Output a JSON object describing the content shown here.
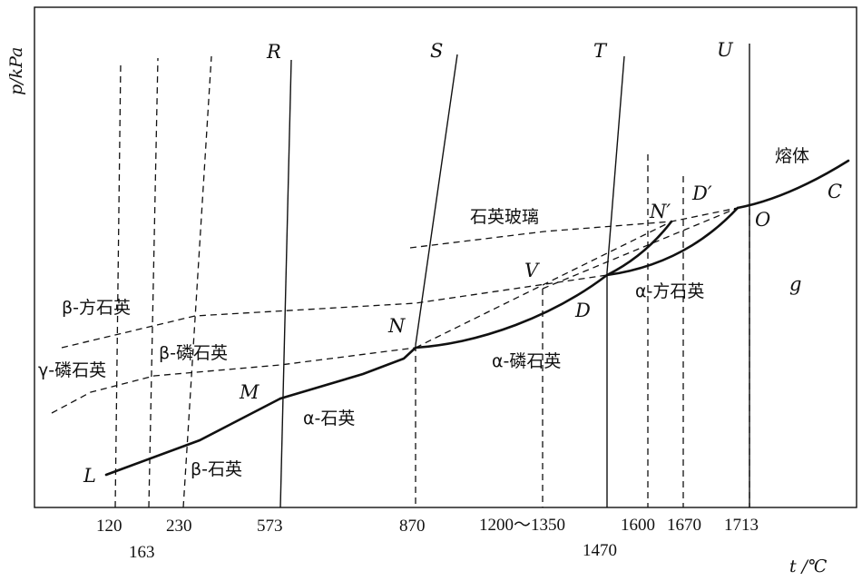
{
  "axes": {
    "y_label": "p/kPa",
    "x_label": "t /℃",
    "ticks": [
      "120",
      "163",
      "230",
      "573",
      "870",
      "1200～1350",
      "1470",
      "1600",
      "1670",
      "1713"
    ]
  },
  "points": {
    "L": "L",
    "M": "M",
    "N": "N",
    "D": "D",
    "V": "V",
    "N_prime": "N′",
    "D_prime": "D′",
    "O": "O",
    "C": "C",
    "g": "g",
    "R": "R",
    "S": "S",
    "T": "T",
    "U": "U"
  },
  "phases": {
    "melt": "熔体",
    "quartz_glass": "石英玻璃",
    "beta_cristobalite": "β-方石英",
    "gamma_tridymite": "γ-磷石英",
    "beta_tridymite": "β-磷石英",
    "alpha_quartz": "α-石英",
    "beta_quartz": "β-石英",
    "alpha_tridymite": "α-磷石英",
    "alpha_cristobalite": "α-方石英"
  }
}
